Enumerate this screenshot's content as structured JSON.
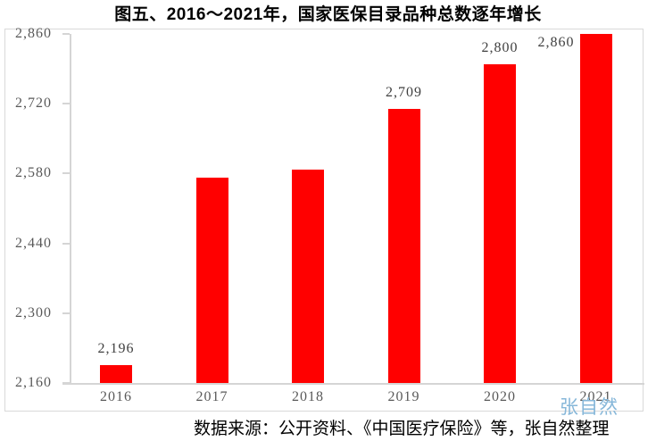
{
  "page": {
    "title": "图五、2016～2021年，国家医保目录品种总数逐年增长"
  },
  "source_note": "数据来源：公开资料、《中国医疗保险》等，张自然整理",
  "watermark": "张自然",
  "colors": {
    "bar": "#FF0000",
    "axis_line": "#D5D5D5",
    "tick_label": "#595959",
    "data_label": "#3F3F3F",
    "watermark": "#86B7D9",
    "chart_border": "#D9D9D9"
  },
  "chart_data": {
    "type": "bar",
    "title": "图五、2016～2021年，国家医保目录品种总数逐年增长",
    "categories": [
      "2016",
      "2017",
      "2018",
      "2019",
      "2020",
      "2021"
    ],
    "values": [
      2196,
      2571,
      2588,
      2709,
      2800,
      2860
    ],
    "data_labels": [
      "2,196",
      null,
      null,
      "2,709",
      "2,800",
      "2,860"
    ],
    "data_label_positions": [
      "above",
      "none",
      "none",
      "above",
      "above",
      "left-of-bar"
    ],
    "xlabel": "",
    "ylabel": "",
    "ylim": [
      2160,
      2860
    ],
    "yticks": [
      2160,
      2300,
      2440,
      2580,
      2720,
      2860
    ],
    "ytick_labels": [
      "2,160",
      "2,300",
      "2,440",
      "2,580",
      "2,720",
      "2,860"
    ],
    "grid": false,
    "legend": false,
    "bar_color": "#FF0000"
  }
}
